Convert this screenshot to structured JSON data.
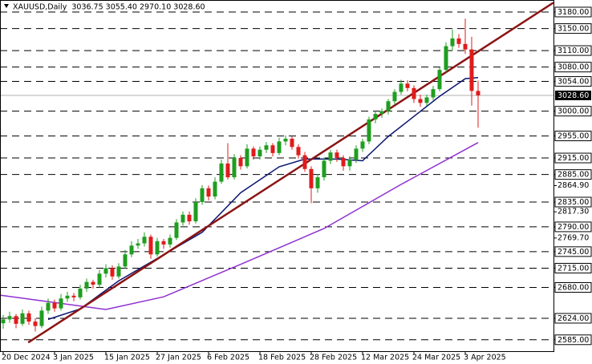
{
  "chart_data": {
    "type": "candlestick",
    "title": "XAUUSD,Daily  3036.75 3055.40 2970.10 3028.60",
    "xlim": [
      -0.5,
      85.75
    ],
    "ylim": [
      2564.3,
      3201.8
    ],
    "up_color": "#1f9e1f",
    "down_color": "#e01b1b",
    "xticks": [
      {
        "value": 0,
        "label": "20 Dec 2024"
      },
      {
        "value": 8,
        "label": "3 Jan 2025"
      },
      {
        "value": 16,
        "label": "15 Jan 2025"
      },
      {
        "value": 24,
        "label": "27 Jan 2025"
      },
      {
        "value": 32,
        "label": "6 Feb 2025"
      },
      {
        "value": 40,
        "label": "18 Feb 2025"
      },
      {
        "value": 48,
        "label": "28 Feb 2025"
      },
      {
        "value": 56,
        "label": "12 Mar 2025"
      },
      {
        "value": 64,
        "label": "24 Mar 2025"
      },
      {
        "value": 72,
        "label": "3 Apr 2025"
      }
    ],
    "levels": [
      {
        "value": 3180,
        "label": "3180.00"
      },
      {
        "value": 3150,
        "label": "3150.00"
      },
      {
        "value": 3110,
        "label": "3110.00"
      },
      {
        "value": 3080,
        "label": "3080.00"
      },
      {
        "value": 3054,
        "label": "3054.00"
      },
      {
        "value": 3000,
        "label": "3000.00"
      },
      {
        "value": 2955,
        "label": "2955.00"
      },
      {
        "value": 2915,
        "label": "2915.00"
      },
      {
        "value": 2885,
        "label": "2885.00"
      },
      {
        "value": 2835,
        "label": "2835.00"
      },
      {
        "value": 2790,
        "label": "2790.00"
      },
      {
        "value": 2745,
        "label": "2745.00"
      },
      {
        "value": 2715,
        "label": "2715.00"
      },
      {
        "value": 2680,
        "label": "2680.00"
      },
      {
        "value": 2624,
        "label": "2624.00"
      },
      {
        "value": 2585,
        "label": "2585.00"
      }
    ],
    "yticks": [
      {
        "value": 2864.9,
        "label": "2864.90"
      },
      {
        "value": 2817.3,
        "label": "2817.30"
      },
      {
        "value": 2769.7,
        "label": "2769.70"
      }
    ],
    "last_price": {
      "value": 3028.6,
      "label": "3028.60"
    },
    "ohlc": [
      [
        2615,
        2630,
        2605,
        2622
      ],
      [
        2622,
        2636,
        2616,
        2628
      ],
      [
        2628,
        2632,
        2606,
        2614
      ],
      [
        2614,
        2640,
        2610,
        2633
      ],
      [
        2633,
        2638,
        2612,
        2618
      ],
      [
        2618,
        2624,
        2600,
        2610
      ],
      [
        2610,
        2645,
        2606,
        2638
      ],
      [
        2638,
        2660,
        2632,
        2652
      ],
      [
        2652,
        2658,
        2636,
        2642
      ],
      [
        2642,
        2668,
        2638,
        2660
      ],
      [
        2660,
        2672,
        2654,
        2665
      ],
      [
        2665,
        2670,
        2655,
        2662
      ],
      [
        2662,
        2685,
        2658,
        2678
      ],
      [
        2678,
        2696,
        2672,
        2690
      ],
      [
        2690,
        2694,
        2678,
        2685
      ],
      [
        2685,
        2712,
        2680,
        2705
      ],
      [
        2705,
        2722,
        2698,
        2715
      ],
      [
        2715,
        2720,
        2694,
        2700
      ],
      [
        2700,
        2724,
        2696,
        2718
      ],
      [
        2718,
        2748,
        2714,
        2740
      ],
      [
        2740,
        2764,
        2735,
        2756
      ],
      [
        2756,
        2768,
        2750,
        2760
      ],
      [
        2760,
        2780,
        2754,
        2772
      ],
      [
        2772,
        2776,
        2732,
        2740
      ],
      [
        2740,
        2770,
        2736,
        2764
      ],
      [
        2764,
        2768,
        2750,
        2758
      ],
      [
        2758,
        2776,
        2752,
        2770
      ],
      [
        2770,
        2804,
        2766,
        2798
      ],
      [
        2798,
        2818,
        2792,
        2812
      ],
      [
        2812,
        2818,
        2794,
        2800
      ],
      [
        2800,
        2842,
        2796,
        2835
      ],
      [
        2835,
        2866,
        2830,
        2860
      ],
      [
        2860,
        2865,
        2838,
        2845
      ],
      [
        2845,
        2880,
        2840,
        2872
      ],
      [
        2872,
        2912,
        2868,
        2905
      ],
      [
        2905,
        2942,
        2876,
        2880
      ],
      [
        2880,
        2922,
        2876,
        2915
      ],
      [
        2915,
        2920,
        2894,
        2900
      ],
      [
        2900,
        2940,
        2896,
        2932
      ],
      [
        2932,
        2936,
        2912,
        2918
      ],
      [
        2918,
        2936,
        2912,
        2930
      ],
      [
        2930,
        2944,
        2924,
        2938
      ],
      [
        2938,
        2942,
        2918,
        2924
      ],
      [
        2924,
        2952,
        2920,
        2945
      ],
      [
        2945,
        2956,
        2938,
        2950
      ],
      [
        2950,
        2954,
        2930,
        2935
      ],
      [
        2935,
        2940,
        2914,
        2920
      ],
      [
        2920,
        2926,
        2890,
        2895
      ],
      [
        2895,
        2900,
        2833,
        2860
      ],
      [
        2860,
        2886,
        2852,
        2880
      ],
      [
        2880,
        2916,
        2874,
        2910
      ],
      [
        2910,
        2930,
        2904,
        2925
      ],
      [
        2925,
        2930,
        2908,
        2915
      ],
      [
        2915,
        2920,
        2892,
        2900
      ],
      [
        2900,
        2918,
        2892,
        2912
      ],
      [
        2912,
        2938,
        2906,
        2932
      ],
      [
        2932,
        2950,
        2926,
        2945
      ],
      [
        2945,
        2990,
        2940,
        2985
      ],
      [
        2985,
        3000,
        2978,
        2995
      ],
      [
        2995,
        3005,
        2988,
        3000
      ],
      [
        3000,
        3022,
        2994,
        3018
      ],
      [
        3018,
        3040,
        3012,
        3035
      ],
      [
        3035,
        3057,
        3030,
        3050
      ],
      [
        3050,
        3056,
        3036,
        3042
      ],
      [
        3042,
        3047,
        3015,
        3022
      ],
      [
        3022,
        3030,
        3008,
        3015
      ],
      [
        3015,
        3030,
        3010,
        3025
      ],
      [
        3025,
        3046,
        3020,
        3040
      ],
      [
        3040,
        3080,
        3036,
        3075
      ],
      [
        3075,
        3125,
        3070,
        3118
      ],
      [
        3118,
        3148,
        3110,
        3132
      ],
      [
        3132,
        3140,
        3115,
        3122
      ],
      [
        3122,
        3168,
        3104,
        3112
      ],
      [
        3112,
        3135,
        3010,
        3036.75
      ],
      [
        3036.75,
        3055.4,
        2970.1,
        3028.6
      ]
    ],
    "lines": [
      {
        "color": "#0b1670",
        "width": 1.5,
        "x": [
          7,
          12,
          18,
          31,
          37,
          43,
          47,
          52,
          56,
          60,
          68,
          72,
          74
        ],
        "values": [
          2622,
          2641,
          2692,
          2780,
          2852,
          2899,
          2913,
          2913,
          2910,
          2954,
          3027,
          3059,
          3061
        ]
      },
      {
        "color": "#9030d0",
        "width": 1.5,
        "x": [
          -0.5,
          16,
          25,
          37,
          50,
          62,
          74
        ],
        "values": [
          2666,
          2640,
          2663,
          2722,
          2787,
          2867,
          2943
        ]
      },
      {
        "color": "#8b1414",
        "width": 2.5,
        "x": [
          3.9,
          85.75
        ],
        "values": [
          2580,
          3197
        ]
      }
    ]
  }
}
